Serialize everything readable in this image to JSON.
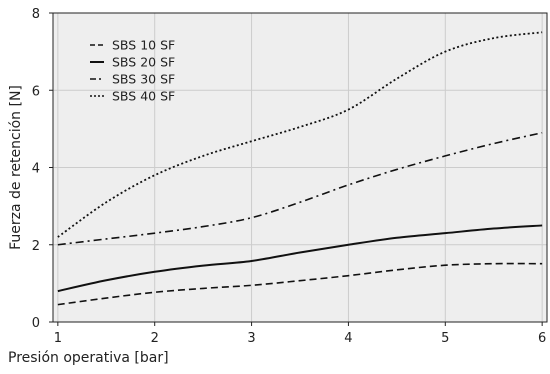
{
  "chart_data": {
    "type": "line",
    "title": "",
    "xlabel": "Presión operativa [bar]",
    "ylabel": "Fuerza de retención [N]",
    "xlim": [
      0.95,
      6.05
    ],
    "ylim": [
      0,
      8
    ],
    "xticks": [
      1,
      2,
      3,
      4,
      5,
      6
    ],
    "yticks": [
      0,
      2,
      4,
      6,
      8
    ],
    "grid": true,
    "legend_position": "top-left",
    "colors": {
      "background": "#eeeeee",
      "grid": "#cccccc",
      "line": "#111111"
    },
    "series": [
      {
        "name": "SBS 10 SF",
        "style": "dashed",
        "x": [
          1,
          1.5,
          2,
          2.5,
          3,
          3.5,
          4,
          4.5,
          5,
          5.5,
          6
        ],
        "y": [
          0.45,
          0.62,
          0.77,
          0.87,
          0.95,
          1.07,
          1.2,
          1.35,
          1.47,
          1.51,
          1.51
        ]
      },
      {
        "name": "SBS 20 SF",
        "style": "solid",
        "x": [
          1,
          1.5,
          2,
          2.5,
          3,
          3.5,
          4,
          4.5,
          5,
          5.5,
          6
        ],
        "y": [
          0.8,
          1.08,
          1.3,
          1.46,
          1.58,
          1.8,
          2.0,
          2.18,
          2.3,
          2.42,
          2.5
        ]
      },
      {
        "name": "SBS 30 SF",
        "style": "dashdot",
        "x": [
          1,
          1.5,
          2,
          2.5,
          3,
          3.5,
          4,
          4.5,
          5,
          5.5,
          6
        ],
        "y": [
          2.0,
          2.15,
          2.3,
          2.47,
          2.7,
          3.1,
          3.55,
          3.95,
          4.3,
          4.62,
          4.9
        ]
      },
      {
        "name": "SBS 40 SF",
        "style": "dotted",
        "x": [
          1,
          1.5,
          2,
          2.5,
          3,
          3.5,
          4,
          4.5,
          5,
          5.5,
          6
        ],
        "y": [
          2.2,
          3.1,
          3.8,
          4.3,
          4.68,
          5.05,
          5.5,
          6.3,
          7.0,
          7.35,
          7.5
        ]
      }
    ]
  }
}
